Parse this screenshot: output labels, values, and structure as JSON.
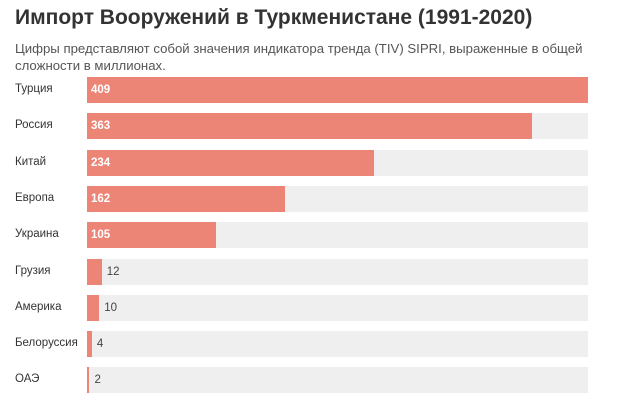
{
  "chart_data": {
    "type": "bar",
    "orientation": "horizontal",
    "title": "Импорт Вооружений в Туркменистане (1991-2020)",
    "subtitle": "Цифры представляют собой значения индикатора тренда (TIV) SIPRI, выраженные в общей сложности в миллионах.",
    "categories": [
      "Турция",
      "Россия",
      "Китай",
      "Европа",
      "Украина",
      "Грузия",
      "Америка",
      "Белоруссия",
      "ОАЭ"
    ],
    "values": [
      409,
      363,
      234,
      162,
      105,
      12,
      10,
      4,
      2
    ],
    "value_labels": [
      "409",
      "363",
      "234",
      "162",
      "105",
      "12",
      "10",
      "4",
      "2"
    ],
    "xlim": [
      0,
      409
    ],
    "grid": false,
    "colors": {
      "bar": "#ed8577",
      "track": "#efefef"
    }
  }
}
